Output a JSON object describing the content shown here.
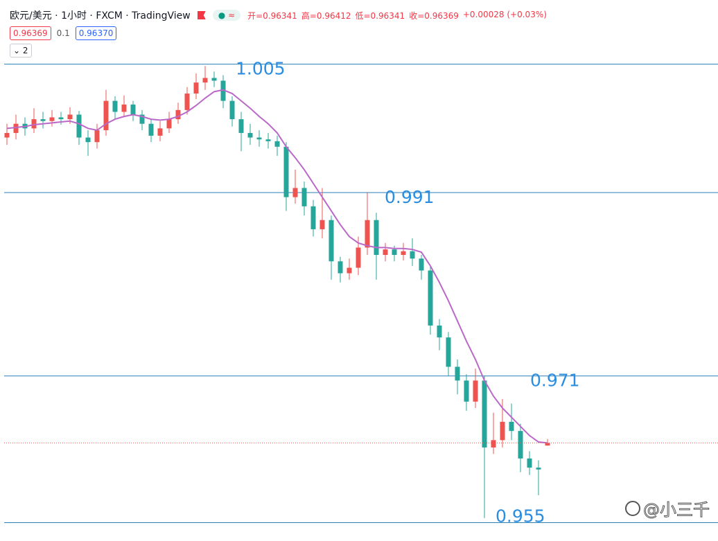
{
  "chart_data": {
    "type": "candlestick",
    "legend": {
      "title": "欧元/美元 · 1小时 · FXCM · TradingView",
      "indicator": "≈",
      "ohlc": [
        "开=0.96341",
        "高=0.96412",
        "低=0.96341",
        "收=0.96369",
        "+0.00028 (+0.03%)"
      ],
      "sell": "0.96369",
      "spread": "0.1",
      "buy": "0.96370",
      "collapsed": "2"
    },
    "watermark": "@小三千",
    "up_color": "#ef5350",
    "down_color": "#26a69a",
    "ylim": [
      0.953,
      1.012
    ],
    "open": [
      0.997,
      0.9975,
      0.9985,
      0.998,
      0.999,
      0.9988,
      0.9992,
      0.999,
      0.9995,
      0.997,
      0.9965,
      0.9978,
      1.001,
      0.9998,
      1.0006,
      0.9995,
      0.9985,
      0.9972,
      0.998,
      0.999,
      1.0,
      1.0018,
      1.003,
      1.0035,
      1.0032,
      1.001,
      0.999,
      0.9975,
      0.997,
      0.9968,
      0.9966,
      0.996,
      0.9905,
      0.9915,
      0.9895,
      0.987,
      0.988,
      0.9835,
      0.9822,
      0.9828,
      0.985,
      0.988,
      0.9842,
      0.9848,
      0.9842,
      0.9846,
      0.9838,
      0.9825,
      0.9765,
      0.9752,
      0.972,
      0.9705,
      0.9682,
      0.9705,
      0.9632,
      0.964,
      0.966,
      0.965,
      0.962,
      0.961,
      0.96341
    ],
    "high": [
      0.9985,
      0.9995,
      0.9992,
      1.0002,
      0.9998,
      1.0,
      0.9998,
      1.0003,
      0.9999,
      0.9978,
      0.9985,
      1.0022,
      1.0015,
      1.0016,
      1.001,
      1.0,
      0.999,
      0.9988,
      0.9998,
      1.0008,
      1.0025,
      1.004,
      1.0048,
      1.0042,
      1.0038,
      1.0015,
      0.9998,
      0.9985,
      0.9978,
      0.9975,
      0.9972,
      0.9965,
      0.9935,
      0.9922,
      0.9902,
      0.9915,
      0.9885,
      0.984,
      0.9838,
      0.9862,
      0.991,
      0.9888,
      0.9855,
      0.9852,
      0.9855,
      0.986,
      0.9842,
      0.983,
      0.9772,
      0.9758,
      0.9728,
      0.9712,
      0.9718,
      0.971,
      0.967,
      0.9685,
      0.968,
      0.9658,
      0.9628,
      0.9618,
      0.96412
    ],
    "low": [
      0.9962,
      0.9968,
      0.9972,
      0.9975,
      0.998,
      0.9982,
      0.9984,
      0.9985,
      0.9962,
      0.995,
      0.9958,
      0.9972,
      0.999,
      0.9992,
      0.9988,
      0.9978,
      0.9965,
      0.9966,
      0.9975,
      0.9985,
      0.9995,
      1.0012,
      1.0022,
      1.0025,
      1.0002,
      0.9982,
      0.9955,
      0.9962,
      0.996,
      0.9958,
      0.995,
      0.989,
      0.9898,
      0.9885,
      0.9862,
      0.986,
      0.9815,
      0.9812,
      0.9815,
      0.982,
      0.9842,
      0.9815,
      0.9835,
      0.9835,
      0.9836,
      0.983,
      0.9815,
      0.9755,
      0.9738,
      0.971,
      0.969,
      0.9672,
      0.9675,
      0.9555,
      0.9625,
      0.9632,
      0.964,
      0.9605,
      0.9602,
      0.958,
      0.96341
    ],
    "close": [
      0.9975,
      0.9985,
      0.998,
      0.999,
      0.9988,
      0.9992,
      0.999,
      0.9995,
      0.997,
      0.9965,
      0.9978,
      1.001,
      0.9998,
      1.0006,
      0.9995,
      0.9985,
      0.9972,
      0.998,
      0.999,
      1.0,
      1.0018,
      1.003,
      1.0035,
      1.0032,
      1.001,
      0.999,
      0.9975,
      0.997,
      0.9968,
      0.9966,
      0.996,
      0.9905,
      0.9915,
      0.9895,
      0.987,
      0.988,
      0.9835,
      0.9822,
      0.9828,
      0.985,
      0.988,
      0.9842,
      0.9848,
      0.9842,
      0.9846,
      0.9838,
      0.9825,
      0.9765,
      0.9752,
      0.972,
      0.9705,
      0.9682,
      0.9705,
      0.9632,
      0.964,
      0.966,
      0.965,
      0.962,
      0.961,
      0.9608,
      0.96369
    ],
    "ma": {
      "color": "#ba68c8",
      "values": [
        0.998,
        0.9981,
        0.9982,
        0.9984,
        0.9985,
        0.9986,
        0.9987,
        0.9988,
        0.9985,
        0.998,
        0.9978,
        0.9985,
        0.999,
        0.9993,
        0.9995,
        0.9993,
        0.999,
        0.9989,
        0.999,
        0.9993,
        0.9998,
        1.0005,
        1.0013,
        1.002,
        1.0022,
        1.0018,
        1.001,
        1.0002,
        0.9993,
        0.9985,
        0.9975,
        0.996,
        0.9948,
        0.9935,
        0.992,
        0.9905,
        0.989,
        0.9875,
        0.9862,
        0.9855,
        0.9852,
        0.985,
        0.985,
        0.9849,
        0.9849,
        0.9848,
        0.9845,
        0.983,
        0.9812,
        0.9792,
        0.977,
        0.9748,
        0.9728,
        0.9705,
        0.9688,
        0.9675,
        0.9665,
        0.9655,
        0.9645,
        0.9638,
        0.9637
      ]
    },
    "levels": [
      1.005,
      0.991,
      0.971,
      0.955
    ],
    "level_color": "#2a7fb5"
  }
}
